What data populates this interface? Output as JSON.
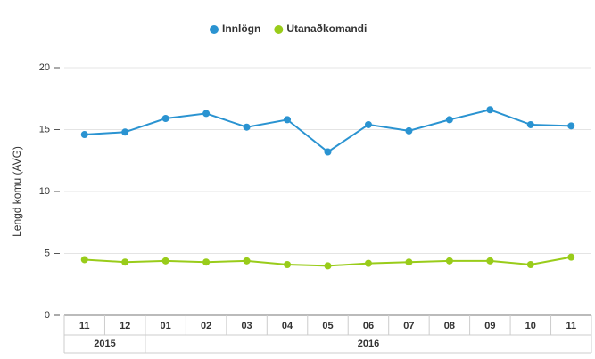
{
  "chart_data": {
    "type": "line",
    "y_label": "Lengd komu (AVG)",
    "categories": [
      "11",
      "12",
      "01",
      "02",
      "03",
      "04",
      "05",
      "06",
      "07",
      "08",
      "09",
      "10",
      "11"
    ],
    "groups": [
      {
        "label": "2015",
        "count": 2
      },
      {
        "label": "2016",
        "count": 11
      }
    ],
    "series": [
      {
        "name": "Innlögn",
        "color": "#2a93d1",
        "values": [
          14.6,
          14.8,
          15.9,
          16.3,
          15.2,
          15.8,
          13.2,
          15.4,
          14.9,
          15.8,
          16.6,
          15.4,
          15.3
        ]
      },
      {
        "name": "Utanaðkomandi",
        "color": "#99cc1a",
        "values": [
          4.5,
          4.3,
          4.4,
          4.3,
          4.4,
          4.1,
          4.0,
          4.2,
          4.3,
          4.4,
          4.4,
          4.1,
          4.7
        ]
      }
    ],
    "ylim": [
      0,
      20
    ],
    "yticks": [
      0,
      5,
      10,
      15,
      20
    ],
    "grid": true,
    "legend": "top"
  }
}
